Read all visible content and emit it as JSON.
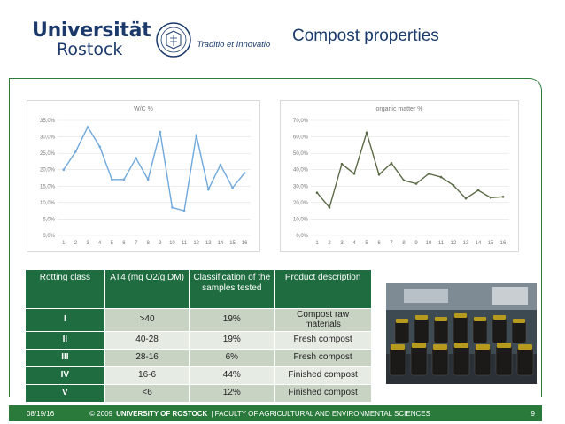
{
  "header": {
    "logo_name": "Universität",
    "logo_city": "Rostock",
    "motto": "Traditio et Innovatio",
    "title": "Compost properties"
  },
  "chart_data": [
    {
      "type": "line",
      "title": "W/C %",
      "categories": [
        "1",
        "2",
        "3",
        "4",
        "5",
        "6",
        "7",
        "8",
        "9",
        "10",
        "11",
        "12",
        "13",
        "14",
        "15",
        "16"
      ],
      "series": [
        {
          "values": [
            20.0,
            25.5,
            33.0,
            27.0,
            17.0,
            17.0,
            23.5,
            17.0,
            31.5,
            8.5,
            7.5,
            30.5,
            14.0,
            21.5,
            14.5,
            19.0
          ]
        }
      ],
      "ylim": [
        0,
        35
      ],
      "yticks": [
        "0,0%",
        "5,0%",
        "10,0%",
        "15,0%",
        "20,0%",
        "25,0%",
        "30,0%",
        "35,0%"
      ],
      "color": "#6fa8dc",
      "grid": true
    },
    {
      "type": "line",
      "title": "organic matter %",
      "categories": [
        "1",
        "2",
        "3",
        "4",
        "5",
        "6",
        "7",
        "8",
        "9",
        "10",
        "11",
        "12",
        "13",
        "14",
        "15",
        "16"
      ],
      "series": [
        {
          "values": [
            26.0,
            17.0,
            43.5,
            37.5,
            62.5,
            37.0,
            44.0,
            33.5,
            31.5,
            37.5,
            35.5,
            30.5,
            22.5,
            27.5,
            23.0,
            23.5
          ]
        }
      ],
      "ylim": [
        0,
        70
      ],
      "yticks": [
        "0,0%",
        "10,0%",
        "20,0%",
        "30,0%",
        "40,0%",
        "50,0%",
        "60,0%",
        "70,0%"
      ],
      "color": "#5b6b47",
      "grid": true
    }
  ],
  "table": {
    "headers": [
      "Rotting class",
      "AT4 (mg O2/g DM)",
      "Classification of the samples tested",
      "Product description"
    ],
    "rows": [
      {
        "cls": "I",
        "at4": ">40",
        "pct": "19%",
        "desc": "Compost raw materials"
      },
      {
        "cls": "II",
        "at4": "40-28",
        "pct": "19%",
        "desc": "Fresh compost"
      },
      {
        "cls": "III",
        "at4": "28-16",
        "pct": "6%",
        "desc": "Fresh compost"
      },
      {
        "cls": "IV",
        "at4": "16-6",
        "pct": "44%",
        "desc": "Finished compost"
      },
      {
        "cls": "V",
        "at4": "<6",
        "pct": "12%",
        "desc": "Finished compost"
      }
    ]
  },
  "footer": {
    "date": "08/19/16",
    "copyright": "© 2009",
    "university": "UNIVERSITY OF ROSTOCK",
    "faculty": "| FACULTY OF AGRICULTURAL AND ENVIRONMENTAL SCIENCES",
    "page": "9"
  },
  "colors": {
    "brand_blue": "#1b3a6b",
    "brand_green": "#2a7a3b",
    "table_header": "#1e6c3f"
  }
}
